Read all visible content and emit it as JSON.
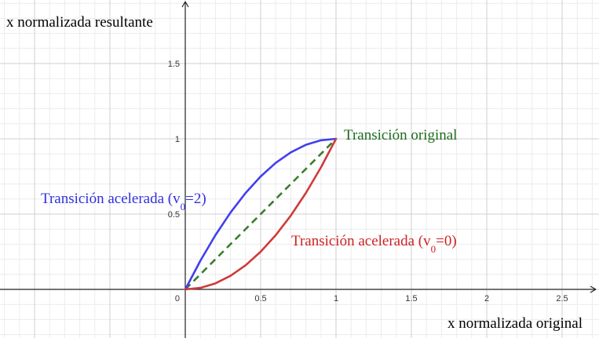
{
  "chart_data": {
    "type": "line",
    "xlabel": "x normalizada original",
    "ylabel": "x normalizada resultante",
    "xlim": [
      0,
      2.75
    ],
    "ylim": [
      0,
      1.95
    ],
    "x_ticks": [
      {
        "value": 0.5,
        "label": "0.5"
      },
      {
        "value": 1,
        "label": "1"
      },
      {
        "value": 1.5,
        "label": "1.5"
      },
      {
        "value": 2,
        "label": "2"
      },
      {
        "value": 2.5,
        "label": "2.5"
      }
    ],
    "y_ticks": [
      {
        "value": 0.5,
        "label": "0.5"
      },
      {
        "value": 1,
        "label": "1"
      },
      {
        "value": 1.5,
        "label": "1.5"
      }
    ],
    "origin_label": "0",
    "grid": true,
    "series": [
      {
        "name": "Transición original",
        "color": "#3a7d2e",
        "style": "dashed",
        "x": [
          0,
          0.25,
          0.5,
          0.75,
          1
        ],
        "y": [
          0,
          0.25,
          0.5,
          0.75,
          1
        ]
      },
      {
        "name": "Transición acelerada (v0=2)",
        "color": "#4040ee",
        "style": "solid",
        "x": [
          0,
          0.1,
          0.2,
          0.3,
          0.4,
          0.5,
          0.6,
          0.7,
          0.8,
          0.9,
          1
        ],
        "y": [
          0,
          0.19,
          0.36,
          0.51,
          0.64,
          0.75,
          0.84,
          0.91,
          0.96,
          0.99,
          1
        ]
      },
      {
        "name": "Transición acelerada (v0=0)",
        "color": "#d03a3a",
        "style": "solid",
        "x": [
          0,
          0.1,
          0.2,
          0.3,
          0.4,
          0.5,
          0.6,
          0.7,
          0.8,
          0.9,
          1
        ],
        "y": [
          0,
          0.01,
          0.04,
          0.09,
          0.16,
          0.25,
          0.36,
          0.49,
          0.64,
          0.81,
          1
        ]
      }
    ],
    "annotations": [
      {
        "id": "original",
        "base": "Transición original",
        "sub": "",
        "tail": "",
        "color": "#1e6b1e"
      },
      {
        "id": "v2",
        "base": "Transición acelerada (v",
        "sub": "0",
        "tail": "=2)",
        "color": "#3030e0"
      },
      {
        "id": "v0",
        "base": "Transición acelerada (v",
        "sub": "0",
        "tail": "=0)",
        "color": "#d02020"
      }
    ]
  }
}
